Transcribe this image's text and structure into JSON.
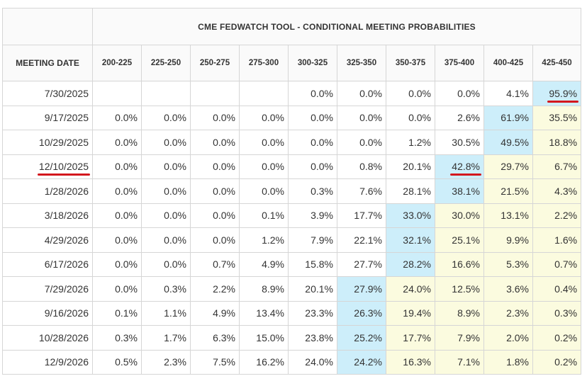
{
  "title": "CME FEDWATCH TOOL - CONDITIONAL MEETING PROBABILITIES",
  "colors": {
    "highlight_max": "#cdeefa",
    "above_max": "#fbfbdf",
    "underline": "#d3171d"
  },
  "chart_data": {
    "type": "table",
    "title": "CME FEDWATCH TOOL - CONDITIONAL MEETING PROBABILITIES",
    "row_header": "MEETING DATE",
    "columns": [
      "200-225",
      "225-250",
      "250-275",
      "275-300",
      "300-325",
      "325-350",
      "350-375",
      "375-400",
      "400-425",
      "425-450"
    ],
    "rows": [
      {
        "date": "7/30/2025",
        "values": [
          "",
          "",
          "",
          "",
          "0.0%",
          "0.0%",
          "0.0%",
          "0.0%",
          "4.1%",
          "95.9%"
        ],
        "max_index": 9,
        "underline_date": false,
        "underline_value": 9
      },
      {
        "date": "9/17/2025",
        "values": [
          "0.0%",
          "0.0%",
          "0.0%",
          "0.0%",
          "0.0%",
          "0.0%",
          "0.0%",
          "2.6%",
          "61.9%",
          "35.5%"
        ],
        "max_index": 8
      },
      {
        "date": "10/29/2025",
        "values": [
          "0.0%",
          "0.0%",
          "0.0%",
          "0.0%",
          "0.0%",
          "0.0%",
          "1.2%",
          "30.5%",
          "49.5%",
          "18.8%"
        ],
        "max_index": 8
      },
      {
        "date": "12/10/2025",
        "values": [
          "0.0%",
          "0.0%",
          "0.0%",
          "0.0%",
          "0.0%",
          "0.8%",
          "20.1%",
          "42.8%",
          "29.7%",
          "6.7%"
        ],
        "max_index": 7,
        "underline_date": true,
        "underline_value": 7
      },
      {
        "date": "1/28/2026",
        "values": [
          "0.0%",
          "0.0%",
          "0.0%",
          "0.0%",
          "0.3%",
          "7.6%",
          "28.1%",
          "38.1%",
          "21.5%",
          "4.3%"
        ],
        "max_index": 7
      },
      {
        "date": "3/18/2026",
        "values": [
          "0.0%",
          "0.0%",
          "0.0%",
          "0.1%",
          "3.9%",
          "17.7%",
          "33.0%",
          "30.0%",
          "13.1%",
          "2.2%"
        ],
        "max_index": 6
      },
      {
        "date": "4/29/2026",
        "values": [
          "0.0%",
          "0.0%",
          "0.0%",
          "1.2%",
          "7.9%",
          "22.1%",
          "32.1%",
          "25.1%",
          "9.9%",
          "1.6%"
        ],
        "max_index": 6
      },
      {
        "date": "6/17/2026",
        "values": [
          "0.0%",
          "0.0%",
          "0.7%",
          "4.9%",
          "15.8%",
          "27.7%",
          "28.2%",
          "16.6%",
          "5.3%",
          "0.7%"
        ],
        "max_index": 6
      },
      {
        "date": "7/29/2026",
        "values": [
          "0.0%",
          "0.3%",
          "2.2%",
          "8.9%",
          "20.1%",
          "27.9%",
          "24.0%",
          "12.5%",
          "3.6%",
          "0.4%"
        ],
        "max_index": 5
      },
      {
        "date": "9/16/2026",
        "values": [
          "0.1%",
          "1.1%",
          "4.9%",
          "13.4%",
          "23.3%",
          "26.3%",
          "19.4%",
          "8.9%",
          "2.3%",
          "0.3%"
        ],
        "max_index": 5
      },
      {
        "date": "10/28/2026",
        "values": [
          "0.3%",
          "1.7%",
          "6.3%",
          "15.0%",
          "23.8%",
          "25.2%",
          "17.7%",
          "7.9%",
          "2.0%",
          "0.2%"
        ],
        "max_index": 5
      },
      {
        "date": "12/9/2026",
        "values": [
          "0.5%",
          "2.3%",
          "7.5%",
          "16.2%",
          "24.0%",
          "24.2%",
          "16.3%",
          "7.1%",
          "1.8%",
          "0.2%"
        ],
        "max_index": 5
      }
    ]
  }
}
